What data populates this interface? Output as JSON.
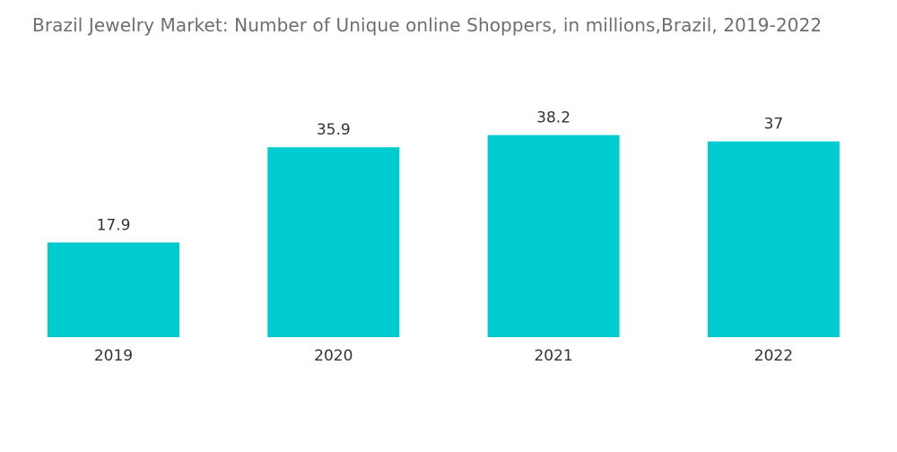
{
  "chart_data": {
    "type": "bar",
    "title": "Brazil Jewelry Market: Number of Unique online Shoppers, in millions,Brazil, 2019-2022",
    "categories": [
      "2019",
      "2020",
      "2021",
      "2022"
    ],
    "values": [
      17.9,
      35.9,
      38.2,
      37
    ],
    "value_labels": [
      "17.9",
      "35.9",
      "38.2",
      "37"
    ],
    "xlabel": "",
    "ylabel": "",
    "ylim": [
      0,
      40
    ],
    "grid": false,
    "legend": "none",
    "bar_color": "#00cccf"
  }
}
